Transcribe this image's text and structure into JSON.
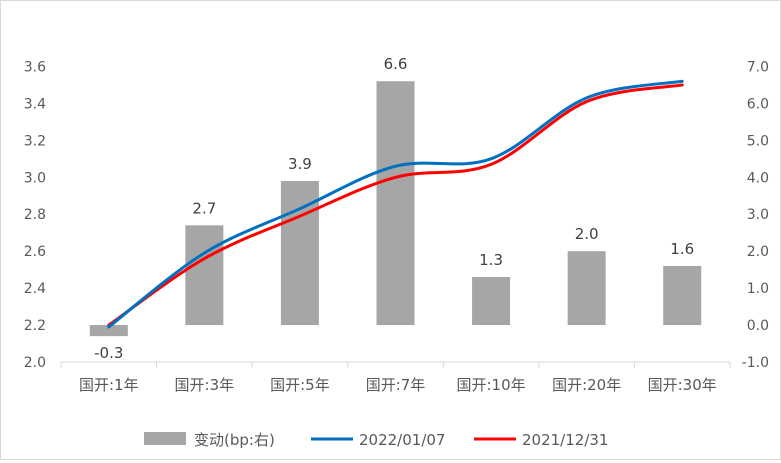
{
  "chart_data": {
    "type": "bar",
    "categories": [
      "国开:1年",
      "国开:3年",
      "国开:5年",
      "国开:7年",
      "国开:10年",
      "国开:20年",
      "国开:30年"
    ],
    "series": [
      {
        "name": "变动(bp:右)",
        "type": "bar",
        "axis": "right",
        "color": "#a6a6a6",
        "values": [
          -0.3,
          2.7,
          3.9,
          6.6,
          1.3,
          2.0,
          1.6
        ]
      },
      {
        "name": "2022/01/07",
        "type": "line",
        "axis": "left",
        "color": "#0070c0",
        "values": [
          2.19,
          2.59,
          2.83,
          3.06,
          3.1,
          3.43,
          3.52
        ]
      },
      {
        "name": "2021/12/31",
        "type": "line",
        "axis": "left",
        "color": "#ff0000",
        "values": [
          2.2,
          2.56,
          2.79,
          3.0,
          3.07,
          3.41,
          3.5
        ]
      }
    ],
    "data_labels": [
      "-0.3",
      "2.7",
      "3.9",
      "6.6",
      "1.3",
      "2.0",
      "1.6"
    ],
    "y_left": {
      "min": 2.0,
      "max": 3.7,
      "ticks": [
        "2.0",
        "2.2",
        "2.4",
        "2.6",
        "2.8",
        "3.0",
        "3.2",
        "3.4",
        "3.6"
      ]
    },
    "y_right": {
      "min": -1.0,
      "max": 7.5,
      "ticks": [
        "-1.0",
        "0.0",
        "1.0",
        "2.0",
        "3.0",
        "4.0",
        "5.0",
        "6.0",
        "7.0"
      ]
    },
    "legend": {
      "position": "bottom"
    },
    "grid": false
  }
}
